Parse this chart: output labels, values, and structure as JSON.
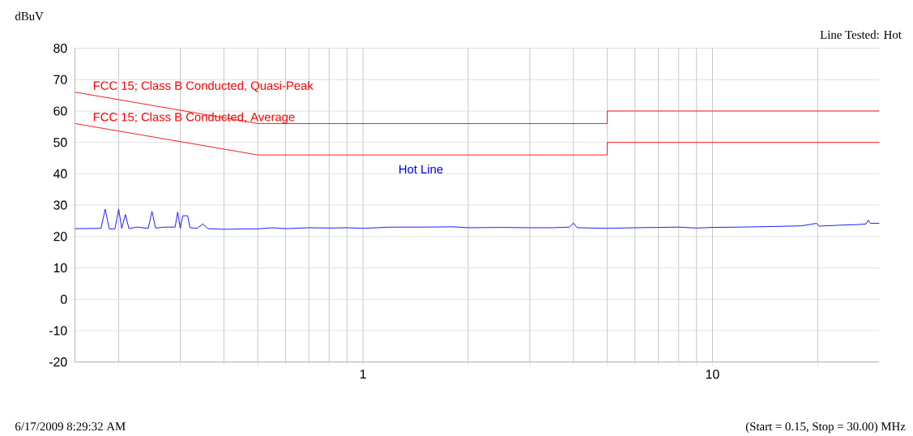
{
  "chart_data": {
    "type": "line",
    "ylabel": "dBuV",
    "log": "x",
    "grid": true,
    "annotations": [
      "Line Tested: Hot",
      "6/17/2009 8:29:32 AM",
      "(Start = 0.15, Stop = 30.00) MHz"
    ],
    "xlim": [
      0.15,
      30
    ],
    "ylim": [
      -20,
      80
    ],
    "xticks": [
      {
        "value": 0.2,
        "label": null
      },
      {
        "value": 0.3,
        "label": null
      },
      {
        "value": 0.4,
        "label": null
      },
      {
        "value": 0.5,
        "label": null
      },
      {
        "value": 0.6,
        "label": null
      },
      {
        "value": 0.7,
        "label": null
      },
      {
        "value": 0.8,
        "label": null
      },
      {
        "value": 0.9,
        "label": null
      },
      1,
      {
        "value": 2,
        "label": null
      },
      {
        "value": 3,
        "label": null
      },
      {
        "value": 4,
        "label": null
      },
      {
        "value": 5,
        "label": null
      },
      {
        "value": 6,
        "label": null
      },
      {
        "value": 7,
        "label": null
      },
      {
        "value": 8,
        "label": null
      },
      {
        "value": 9,
        "label": null
      },
      10,
      {
        "value": 20,
        "label": null
      }
    ],
    "yticks": [
      -20,
      -10,
      0,
      10,
      20,
      30,
      40,
      50,
      60,
      70,
      80
    ],
    "series": [
      {
        "name": "FCC 15; Class B Conducted, Quasi-Peak",
        "color": "#ff0000",
        "x": [
          0.15,
          0.5,
          5,
          5,
          30
        ],
        "values": [
          66,
          56,
          56,
          60,
          60
        ]
      },
      {
        "name": "FCC 15; Class B Conducted, Average",
        "color": "#ff0000",
        "x": [
          0.15,
          0.5,
          5,
          5,
          30
        ],
        "values": [
          56,
          46,
          46,
          50,
          50
        ]
      },
      {
        "name": "Hot Line",
        "color": "#0000ff",
        "x": [
          0.15,
          0.178,
          0.183,
          0.188,
          0.195,
          0.2,
          0.204,
          0.209,
          0.214,
          0.225,
          0.243,
          0.249,
          0.255,
          0.27,
          0.29,
          0.295,
          0.3,
          0.305,
          0.315,
          0.32,
          0.335,
          0.348,
          0.36,
          0.4,
          0.45,
          0.5,
          0.55,
          0.6,
          0.7,
          0.8,
          0.9,
          1.0,
          1.2,
          1.5,
          1.8,
          2.0,
          2.5,
          3.0,
          3.5,
          3.9,
          4.0,
          4.1,
          5,
          6,
          7,
          8,
          9,
          10,
          12,
          15,
          18,
          19.85,
          20.2,
          23,
          26,
          27.5,
          27.9,
          28.3,
          30
        ],
        "values": [
          22.5,
          22.6,
          28.7,
          22.4,
          22.4,
          28.7,
          22.6,
          27.0,
          22.5,
          23.0,
          22.6,
          28.0,
          22.7,
          23.0,
          23.0,
          27.8,
          22.6,
          26.6,
          26.6,
          22.8,
          22.6,
          24.0,
          22.5,
          22.3,
          22.4,
          22.4,
          22.8,
          22.5,
          22.8,
          22.7,
          22.8,
          22.6,
          23.0,
          23.0,
          23.1,
          22.8,
          22.9,
          22.8,
          22.8,
          23.0,
          24.3,
          22.8,
          22.6,
          22.8,
          22.9,
          23.0,
          22.7,
          22.9,
          23.0,
          23.2,
          23.4,
          24.2,
          23.3,
          23.6,
          23.8,
          24.0,
          25.2,
          24.2,
          24.2
        ]
      }
    ]
  }
}
